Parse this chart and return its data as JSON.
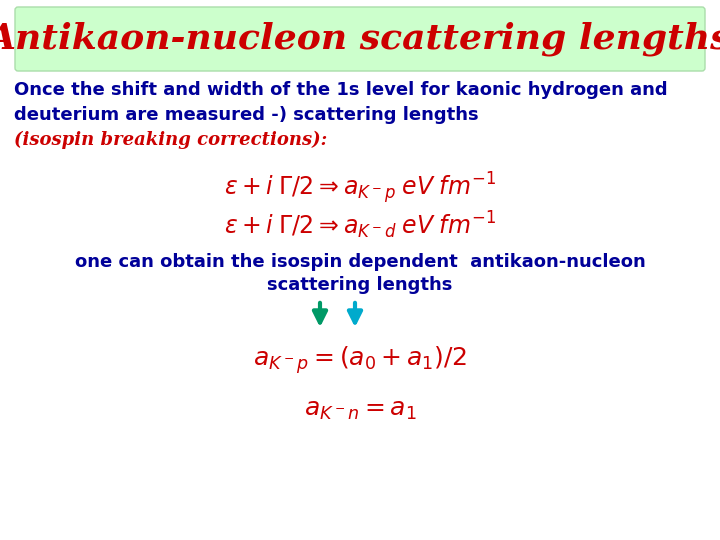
{
  "title": "Antikaon-nucleon scattering lengths",
  "title_color": "#cc0000",
  "title_bg_start": "#aaffaa",
  "title_bg_end": "#ffffff",
  "title_fontsize": 26,
  "body_text_color": "#000099",
  "formula_color": "#cc0000",
  "italic_text_color": "#cc0000",
  "bg_color": "#ffffff",
  "line1": "Once the shift and width of the 1s level for kaonic hydrogen and",
  "line2": "deuterium are measured -) scattering lengths",
  "line3": "(isospin breaking corrections):",
  "center_text1": "one can obtain the isospin dependent  antikaon-nucleon",
  "center_text2": "scattering lengths",
  "arrow1_color": "#009966",
  "arrow2_color": "#00aacc",
  "body_fontsize": 13,
  "formula_fontsize": 17,
  "result_fontsize": 18
}
